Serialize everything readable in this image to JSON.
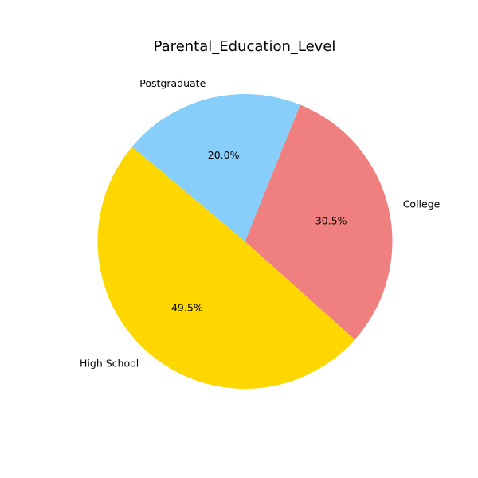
{
  "chart_data": {
    "type": "pie",
    "title": "Parental_Education_Level",
    "categories": [
      "High School",
      "College",
      "Postgraduate"
    ],
    "values": [
      49.5,
      30.5,
      20.0
    ],
    "percent_labels": [
      "49.5%",
      "30.5%",
      "20.0%"
    ],
    "colors": [
      "#FFD700",
      "#F08080",
      "#87CEFA"
    ],
    "start_angle_deg": 140,
    "direction": "counterclockwise",
    "legend": "none"
  }
}
